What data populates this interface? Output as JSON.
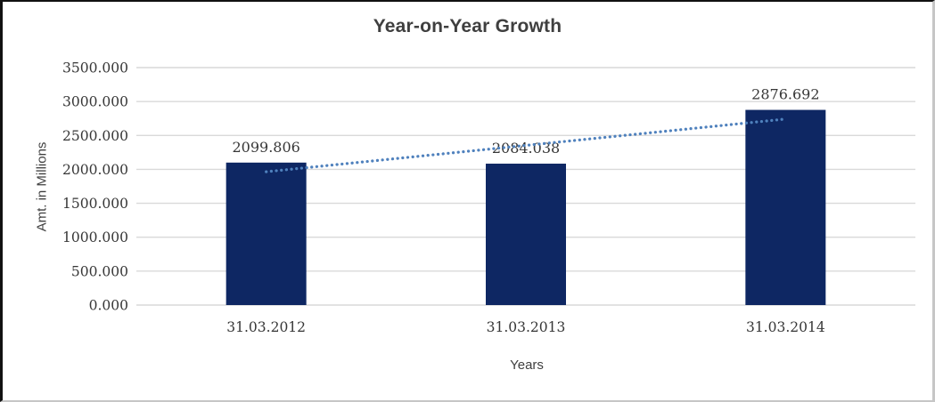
{
  "chart_data": {
    "type": "bar",
    "title": "Year-on-Year Growth",
    "xlabel": "Years",
    "ylabel": "Amt. in Millions",
    "categories": [
      "31.03.2012",
      "31.03.2013",
      "31.03.2014"
    ],
    "values": [
      2099.806,
      2084.038,
      2876.692
    ],
    "data_labels": [
      "2099.806",
      "2084.038",
      "2876.692"
    ],
    "ytick_values": [
      0,
      500,
      1000,
      1500,
      2000,
      2500,
      3000,
      3500
    ],
    "ytick_labels": [
      "0.000",
      "500.000",
      "1000.000",
      "1500.000",
      "2000.000",
      "2500.000",
      "3000.000",
      "3500.000"
    ],
    "ylim": [
      0,
      3500
    ],
    "grid": true,
    "legend_position": "none",
    "trendline": {
      "type": "linear",
      "style": "dotted"
    },
    "colors": {
      "bar": "#0e2763",
      "trendline": "#4f81bd",
      "gridline": "#d9d9d9",
      "title_text": "#3f3f3f",
      "tick_text": "#373737",
      "background": "#ffffff"
    }
  }
}
